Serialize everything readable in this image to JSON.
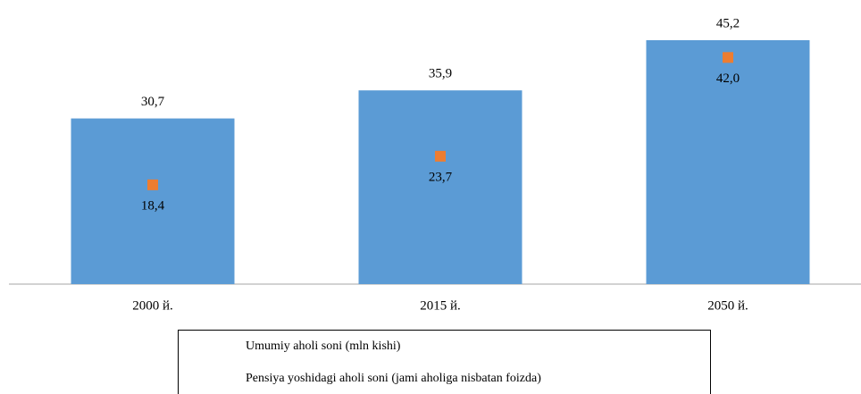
{
  "chart_data": {
    "type": "bar",
    "categories": [
      "2000 й.",
      "2015 й.",
      "2050 й."
    ],
    "series": [
      {
        "name": "Umumiy aholi soni (mln kishi)",
        "type": "bar",
        "color": "#5b9bd5",
        "values": [
          30.7,
          35.9,
          45.2
        ],
        "value_labels": [
          "30,7",
          "35,9",
          "45,2"
        ]
      },
      {
        "name": "Pensiya yoshidagi aholi soni (jami aholiga nisbatan foizda)",
        "type": "scatter",
        "color": "#ed7d31",
        "values": [
          18.4,
          23.7,
          42.0
        ],
        "value_labels": [
          "18,4",
          "23,7",
          "42,0"
        ]
      }
    ]
  }
}
